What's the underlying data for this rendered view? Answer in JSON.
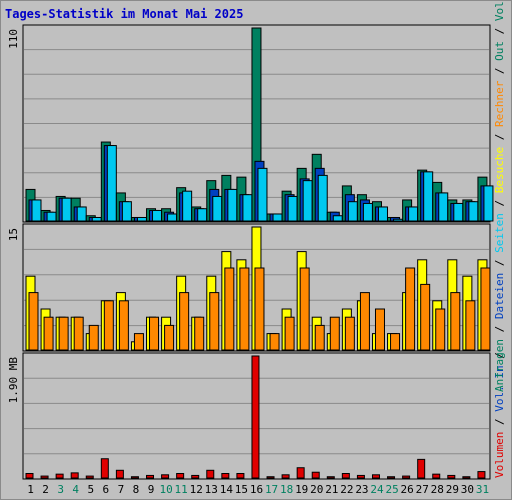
{
  "title": "Tages-Statistik im Monat Mai 2025",
  "colors": {
    "background": "#c0c0c0",
    "panel_border": "#000000",
    "gridline": "#8a8a8a",
    "anfragen": "#008060",
    "dateien": "#0040c0",
    "seiten": "#00c8f0",
    "besuche": "#ffff00",
    "rechner": "#ff8800",
    "volumen": "#e00000",
    "weekday_label": "#000000",
    "weekend_label": "#008060",
    "separator": "#000000"
  },
  "chart_data": [
    {
      "type": "bar",
      "panel": "requests",
      "ylabel": "110",
      "ylim": [
        0,
        110
      ],
      "categories": [
        "1",
        "2",
        "3",
        "4",
        "5",
        "6",
        "7",
        "8",
        "9",
        "10",
        "11",
        "12",
        "13",
        "14",
        "15",
        "16",
        "17",
        "18",
        "19",
        "20",
        "21",
        "22",
        "23",
        "24",
        "25",
        "26",
        "27",
        "28",
        "29",
        "30",
        "31"
      ],
      "weekend": [
        false,
        false,
        true,
        true,
        false,
        false,
        false,
        false,
        false,
        true,
        true,
        false,
        false,
        false,
        false,
        false,
        true,
        true,
        false,
        false,
        false,
        false,
        false,
        true,
        true,
        false,
        false,
        false,
        false,
        false,
        true
      ],
      "series": [
        {
          "name": "Anfragen",
          "color_key": "anfragen",
          "values": [
            18,
            6,
            14,
            13,
            3,
            45,
            16,
            2,
            7,
            7,
            19,
            8,
            23,
            26,
            25,
            110,
            4,
            17,
            30,
            38,
            5,
            20,
            15,
            11,
            2,
            12,
            29,
            22,
            12,
            12,
            25
          ]
        },
        {
          "name": "Dateien",
          "color_key": "dateien",
          "values": [
            12,
            5,
            13,
            8,
            2,
            43,
            11,
            2,
            6,
            5,
            16,
            7,
            18,
            18,
            15,
            34,
            4,
            15,
            24,
            30,
            5,
            15,
            12,
            8,
            2,
            8,
            28,
            16,
            10,
            11,
            20
          ]
        },
        {
          "name": "Seiten",
          "color_key": "seiten",
          "values": [
            12,
            5,
            13,
            8,
            2,
            43,
            11,
            2,
            6,
            4,
            17,
            7,
            14,
            18,
            15,
            30,
            4,
            14,
            23,
            26,
            3,
            11,
            10,
            8,
            1,
            8,
            28,
            16,
            10,
            11,
            20
          ]
        }
      ],
      "separator_label": "/"
    },
    {
      "type": "bar",
      "panel": "visits",
      "ylabel": "15",
      "ylim": [
        0,
        15
      ],
      "categories": [
        "1",
        "2",
        "3",
        "4",
        "5",
        "6",
        "7",
        "8",
        "9",
        "10",
        "11",
        "12",
        "13",
        "14",
        "15",
        "16",
        "17",
        "18",
        "19",
        "20",
        "21",
        "22",
        "23",
        "24",
        "25",
        "26",
        "27",
        "28",
        "29",
        "30",
        "31"
      ],
      "series": [
        {
          "name": "Besuche",
          "color_key": "besuche",
          "values": [
            9,
            5,
            4,
            4,
            2,
            6,
            7,
            1,
            4,
            4,
            9,
            4,
            9,
            12,
            11,
            15,
            2,
            5,
            12,
            4,
            2,
            5,
            6,
            2,
            2,
            7,
            11,
            6,
            11,
            9,
            11
          ]
        },
        {
          "name": "Rechner",
          "color_key": "rechner",
          "values": [
            7,
            4,
            4,
            4,
            3,
            6,
            6,
            2,
            4,
            3,
            7,
            4,
            7,
            10,
            10,
            10,
            2,
            4,
            10,
            3,
            4,
            4,
            7,
            5,
            2,
            10,
            8,
            5,
            7,
            6,
            10
          ]
        }
      ]
    },
    {
      "type": "bar",
      "panel": "volume",
      "ylabel": "1.90 MB",
      "ylim": [
        0,
        1.9
      ],
      "categories": [
        "1",
        "2",
        "3",
        "4",
        "5",
        "6",
        "7",
        "8",
        "9",
        "10",
        "11",
        "12",
        "13",
        "14",
        "15",
        "16",
        "17",
        "18",
        "19",
        "20",
        "21",
        "22",
        "23",
        "24",
        "25",
        "26",
        "27",
        "28",
        "29",
        "30",
        "31"
      ],
      "series": [
        {
          "name": "Volumen",
          "color_key": "volumen",
          "values": [
            0.07,
            0.03,
            0.06,
            0.08,
            0.03,
            0.3,
            0.12,
            0.02,
            0.04,
            0.05,
            0.07,
            0.04,
            0.12,
            0.07,
            0.07,
            1.9,
            0.02,
            0.05,
            0.16,
            0.09,
            0.02,
            0.07,
            0.04,
            0.05,
            0.02,
            0.03,
            0.29,
            0.06,
            0.04,
            0.02,
            0.1
          ]
        }
      ]
    }
  ],
  "legend_right_top": [
    {
      "label": "Anfragen",
      "color_key": "anfragen"
    },
    {
      "label": "/",
      "color_key": "separator"
    },
    {
      "label": "Dateien",
      "color_key": "dateien"
    },
    {
      "label": "/",
      "color_key": "separator"
    },
    {
      "label": "Seiten",
      "color_key": "seiten"
    },
    {
      "label": "/",
      "color_key": "separator"
    },
    {
      "label": "Besuche",
      "color_key": "besuche"
    },
    {
      "label": "/",
      "color_key": "separator"
    },
    {
      "label": "Rechner",
      "color_key": "rechner"
    },
    {
      "label": "/",
      "color_key": "separator"
    },
    {
      "label": "Out",
      "color_key": "weekend_label"
    },
    {
      "label": "/",
      "color_key": "separator"
    },
    {
      "label": "Vol.",
      "color_key": "weekend_label"
    }
  ],
  "legend_right_bottom": [
    {
      "label": "Volumen",
      "color_key": "volumen"
    },
    {
      "label": "/",
      "color_key": "separator"
    },
    {
      "label": "Vol. In",
      "color_key": "dateien"
    },
    {
      "label": "/",
      "color_key": "separator"
    }
  ]
}
